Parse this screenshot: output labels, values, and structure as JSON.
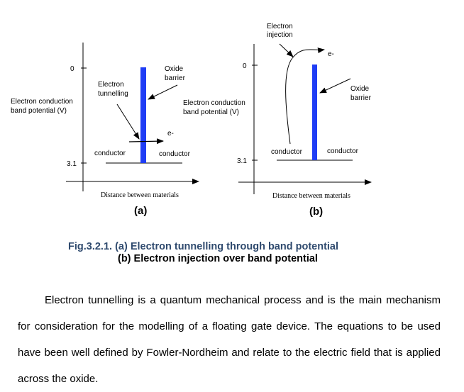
{
  "figure": {
    "panel_a": {
      "y_label_line1": "Electron conduction",
      "y_label_line2": "band potential (V)",
      "tick_0": "0",
      "tick_31": "3.1",
      "x_label": "Distance between materials",
      "oxide_line1": "Oxide",
      "oxide_line2": "barrier",
      "tunnel_line1": "Electron",
      "tunnel_line2": "tunnelling",
      "electron": "e-",
      "conductor_left": "conductor",
      "conductor_right": "conductor",
      "sublabel": "(a)"
    },
    "panel_b": {
      "y_label_line1": "Electron conduction",
      "y_label_line2": "band potential (V)",
      "tick_0": "0",
      "tick_31": "3.1",
      "x_label": "Distance between materials",
      "oxide_line1": "Oxide",
      "oxide_line2": "barrier",
      "inject_line1": "Electron",
      "inject_line2": "injection",
      "electron": "e-",
      "conductor_left": "conductor",
      "conductor_right": "conductor",
      "sublabel": "(b)"
    },
    "barrier_color": "#1f3df5",
    "caption_line1": "Fig.3.2.1. (a) Electron tunnelling through band potential",
    "caption_line2": "(b) Electron injection over band potential",
    "caption_color": "#2f4a6e"
  },
  "body_text": "Electron tunnelling is a quantum mechanical process and is the main mechanism for consideration for the modelling of a floating gate device. The equations to be used have been well defined by Fowler-Nordheim and relate to the electric field that is applied across the oxide."
}
